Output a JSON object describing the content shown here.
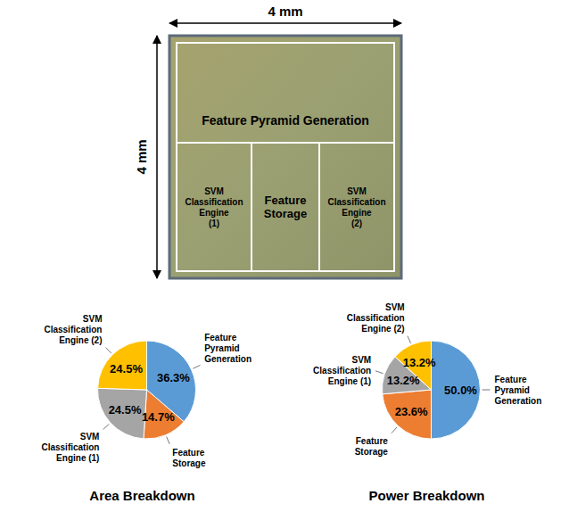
{
  "die_photo": {
    "width_label": "4 mm",
    "height_label": "4 mm",
    "regions": {
      "top": "Feature Pyramid Generation",
      "bottom": [
        "SVM Classification Engine (1)",
        "Feature Storage",
        "SVM Classification Engine (2)"
      ]
    }
  },
  "chart_data": [
    {
      "type": "pie",
      "title": "Area Breakdown",
      "categories": [
        "Feature Pyramid Generation",
        "Feature Storage",
        "SVM Classification Engine (1)",
        "SVM Classification Engine (2)"
      ],
      "values": [
        36.3,
        14.7,
        24.5,
        24.5
      ],
      "value_labels": [
        "36.3%",
        "14.7%",
        "24.5%",
        "24.5%"
      ],
      "colors": [
        "#5b9bd5",
        "#ed7d31",
        "#a5a5a5",
        "#ffc000"
      ],
      "data_labels": true
    },
    {
      "type": "pie",
      "title": "Power Breakdown",
      "categories": [
        "Feature Pyramid Generation",
        "Feature Storage",
        "SVM Classification Engine (1)",
        "SVM Classification Engine (2)"
      ],
      "values": [
        50.0,
        23.6,
        13.2,
        13.2
      ],
      "value_labels": [
        "50.0%",
        "23.6%",
        "13.2%",
        "13.2%"
      ],
      "colors": [
        "#5b9bd5",
        "#ed7d31",
        "#a5a5a5",
        "#ffc000"
      ],
      "data_labels": true
    }
  ]
}
